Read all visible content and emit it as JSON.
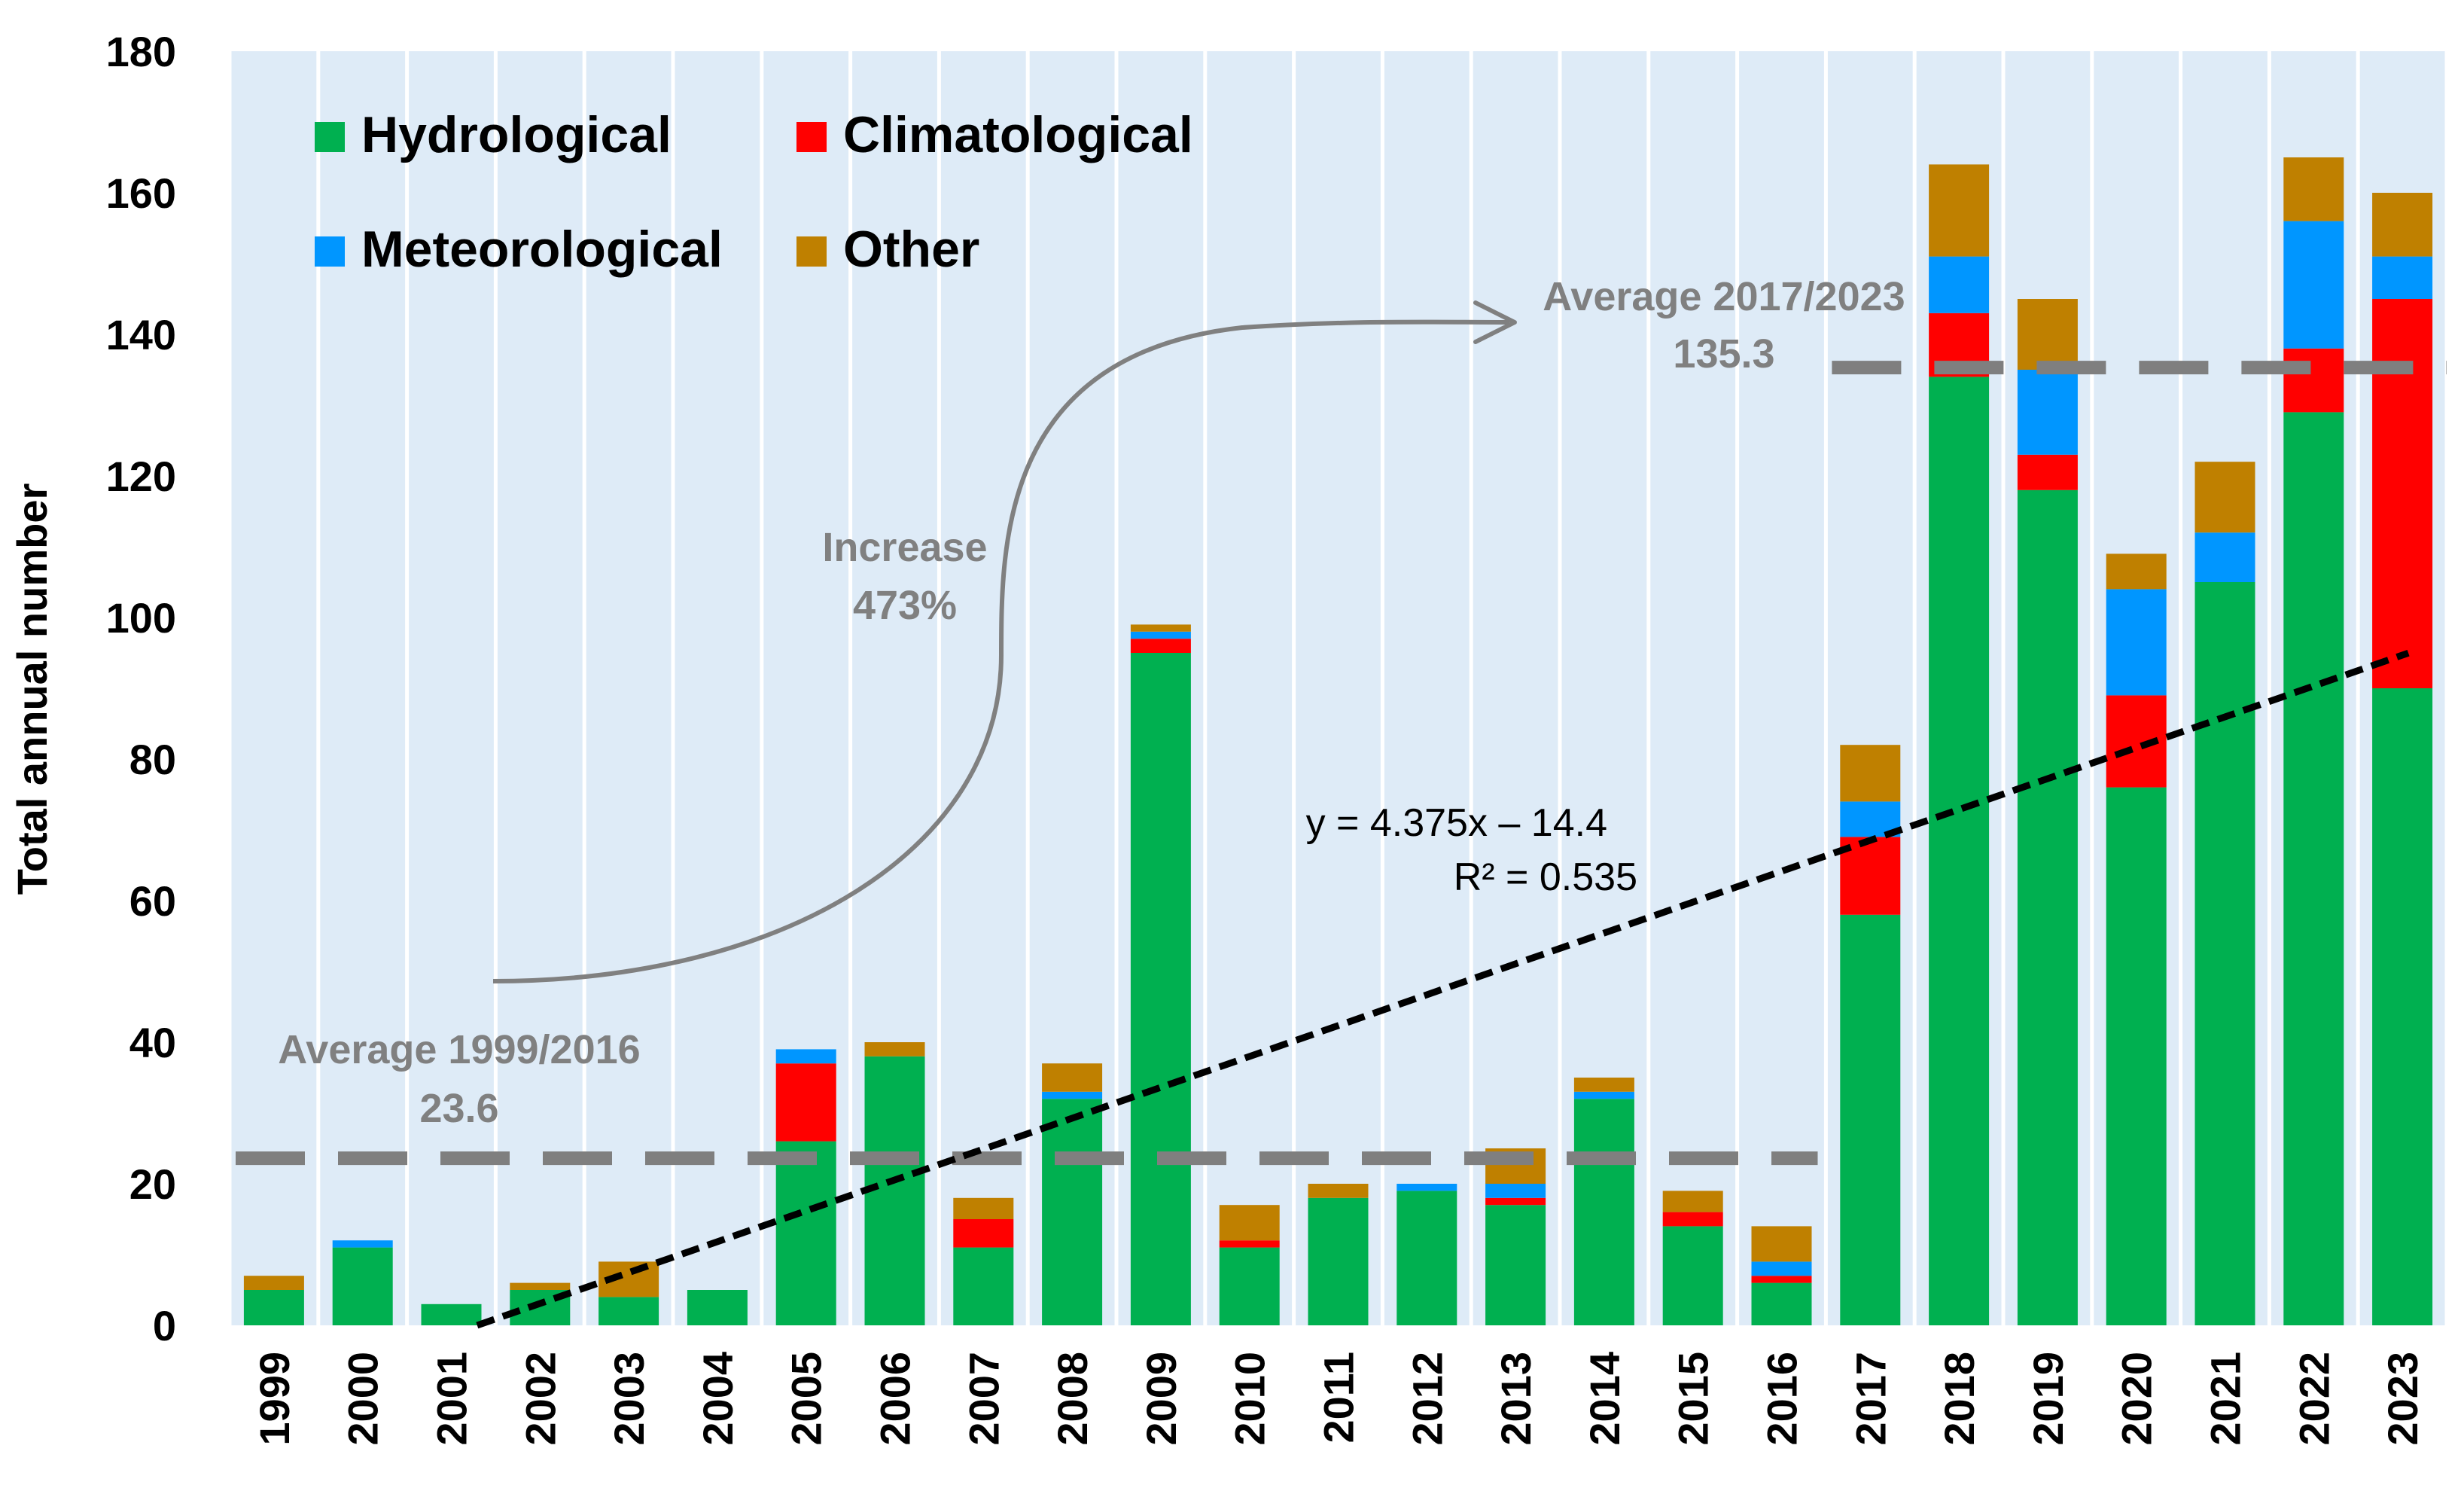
{
  "chart_data": {
    "type": "bar",
    "stacked": true,
    "ylabel": "Total annual number",
    "xlabel": "",
    "ylim": [
      0,
      180
    ],
    "yticks": [
      0,
      20,
      40,
      60,
      80,
      100,
      120,
      140,
      160,
      180
    ],
    "grid": "vertical",
    "legend_position": "top-left",
    "categories": [
      "1999",
      "2000",
      "2001",
      "2002",
      "2003",
      "2004",
      "2005",
      "2006",
      "2007",
      "2008",
      "2009",
      "2010",
      "2011",
      "2012",
      "2013",
      "2014",
      "2015",
      "2016",
      "2017",
      "2018",
      "2019",
      "2020",
      "2021",
      "2022",
      "2023"
    ],
    "series": [
      {
        "name": "Hydrological",
        "color": "#00b050",
        "values": [
          5,
          11,
          3,
          5,
          4,
          5,
          26,
          38,
          11,
          32,
          95,
          11,
          18,
          19,
          17,
          32,
          14,
          6,
          58,
          134,
          118,
          76,
          105,
          129,
          90
        ]
      },
      {
        "name": "Climatological",
        "color": "#ff0000",
        "values": [
          0,
          0,
          0,
          0,
          0,
          0,
          11,
          0,
          4,
          0,
          2,
          1,
          0,
          0,
          1,
          0,
          2,
          1,
          11,
          9,
          5,
          13,
          0,
          9,
          55
        ]
      },
      {
        "name": "Meteorological",
        "color": "#0096ff",
        "values": [
          0,
          1,
          0,
          0,
          0,
          0,
          2,
          0,
          0,
          1,
          1,
          0,
          0,
          1,
          2,
          1,
          0,
          2,
          5,
          8,
          12,
          15,
          7,
          18,
          6
        ]
      },
      {
        "name": "Other",
        "color": "#bf8000",
        "values": [
          2,
          0,
          0,
          1,
          5,
          0,
          0,
          2,
          3,
          4,
          1,
          5,
          2,
          0,
          5,
          2,
          3,
          5,
          8,
          13,
          10,
          5,
          10,
          9,
          9
        ]
      }
    ],
    "averages": [
      {
        "label": "Average 1999/2016",
        "value_label": "23.6",
        "value": 23.6,
        "from": "1999",
        "to": "2016"
      },
      {
        "label": "Average 2017/2023",
        "value_label": "135.3",
        "value": 135.3,
        "from": "2017",
        "to": "2023"
      }
    ],
    "trendline": {
      "slope": 4.375,
      "intercept": -14.4,
      "equation": "y = 4.375x – 14.4",
      "r2": "R² = 0.535"
    },
    "increase_annotation": {
      "line1": "Increase",
      "line2": "473%"
    },
    "colors": {
      "background": "#deebf7",
      "grid": "#ffffff",
      "average_line": "#7f7f7f",
      "annotation": "#808080",
      "trend": "#000000"
    }
  }
}
